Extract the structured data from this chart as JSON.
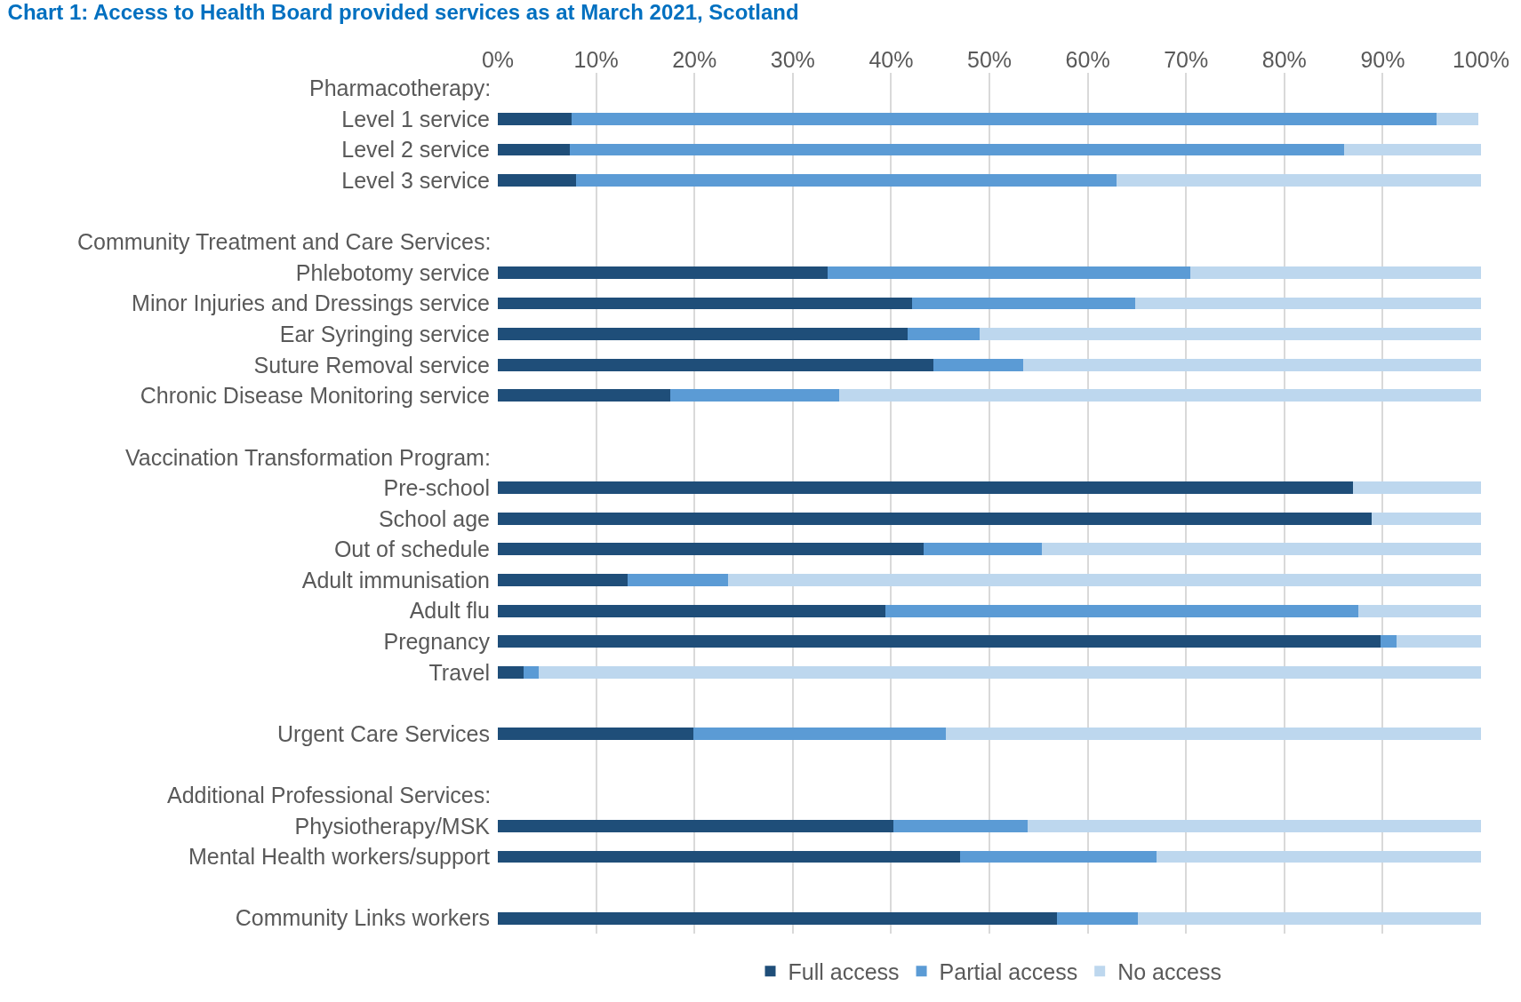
{
  "chart_data": {
    "type": "bar",
    "orientation": "horizontal",
    "stacked": true,
    "title": "Chart 1: Access to Health Board provided services as at March 2021, Scotland",
    "annotations": [
      "Pharmacotherapy:",
      "Community Treatment and Care Services:",
      "Vaccination Transformation Program:",
      "Additional Professional Services:"
    ],
    "categories": [
      null,
      "Level 1 service",
      "Level 2 service",
      "Level 3 service",
      null,
      null,
      "Phlebotomy service",
      "Minor Injuries and Dressings service",
      "Ear Syringing service",
      "Suture Removal service",
      "Chronic Disease Monitoring service",
      null,
      null,
      "Pre-school",
      "School age",
      "Out of schedule",
      "Adult immunisation",
      "Adult flu",
      "Pregnancy",
      "Travel",
      null,
      "Urgent Care Services",
      null,
      null,
      "Physiotherapy/MSK",
      "Mental Health workers/support",
      null,
      "Community Links workers"
    ],
    "series": [
      {
        "name": "Full access",
        "color": "#1f4e79",
        "values": [
          null,
          7.5,
          7.3,
          8,
          null,
          null,
          33.5,
          42.1,
          41.7,
          44.3,
          17.5,
          null,
          null,
          87,
          88.9,
          43.3,
          13.2,
          39.4,
          89.8,
          2.6,
          null,
          19.9,
          null,
          null,
          40.2,
          47,
          null,
          56.9
        ]
      },
      {
        "name": "Partial access",
        "color": "#5b9bd5",
        "values": [
          null,
          88,
          78.8,
          54.9,
          null,
          null,
          36.9,
          22.7,
          7.3,
          9.1,
          17.2,
          null,
          null,
          0,
          0,
          12,
          10.2,
          48.1,
          1.6,
          1.6,
          null,
          25.7,
          null,
          null,
          13.7,
          20,
          null,
          8.2
        ]
      },
      {
        "name": "No access",
        "color": "#bdd7ee",
        "values": [
          null,
          4.2,
          13.9,
          37.1,
          null,
          null,
          29.6,
          35.2,
          51,
          46.6,
          65.3,
          null,
          null,
          13,
          11.1,
          44.7,
          76.6,
          12.5,
          8.6,
          95.8,
          null,
          54.4,
          null,
          null,
          46.1,
          33,
          null,
          34.9
        ]
      }
    ],
    "xlim": [
      0,
      100
    ],
    "xticks": [
      {
        "value": 0,
        "label": "0%"
      },
      {
        "value": 10,
        "label": "10%"
      },
      {
        "value": 20,
        "label": "20%"
      },
      {
        "value": 30,
        "label": "30%"
      },
      {
        "value": 40,
        "label": "40%"
      },
      {
        "value": 50,
        "label": "50%"
      },
      {
        "value": 60,
        "label": "60%"
      },
      {
        "value": 70,
        "label": "70%"
      },
      {
        "value": 80,
        "label": "80%"
      },
      {
        "value": 90,
        "label": "90%"
      },
      {
        "value": 100,
        "label": "100%"
      }
    ],
    "grid": "x",
    "legend": "bottom"
  }
}
